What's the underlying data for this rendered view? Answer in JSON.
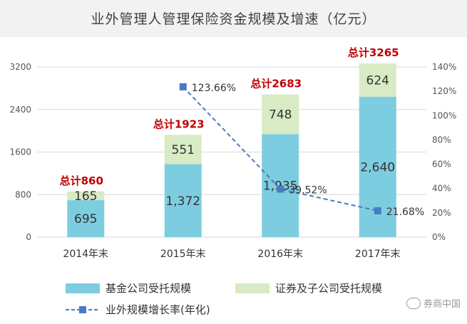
{
  "title": "业外管理人管理保险资金规模及增速（亿元）",
  "colors": {
    "fund": "#7dcde0",
    "securities": "#d8ebc4",
    "line": "#4a7ac0",
    "total": "#c00000"
  },
  "chart_data": {
    "type": "bar",
    "stacked": true,
    "categories": [
      "2014年末",
      "2015年末",
      "2016年末",
      "2017年末"
    ],
    "series": [
      {
        "name": "基金公司受托规模",
        "values": [
          695,
          1372,
          1935,
          2640
        ],
        "labels": [
          "695",
          "1,372",
          "1,935",
          "2,640"
        ]
      },
      {
        "name": "证券及子公司受托规模",
        "values": [
          165,
          551,
          748,
          624
        ],
        "labels": [
          "165",
          "551",
          "748",
          "624"
        ]
      }
    ],
    "totals": [
      860,
      1923,
      2683,
      3265
    ],
    "total_labels": [
      "总计860",
      "总计1923",
      "总计2683",
      "总计3265"
    ],
    "line": {
      "name": "业外规模增长率(年化)",
      "type": "line",
      "axis": "right",
      "values": [
        null,
        123.66,
        39.52,
        21.68
      ],
      "labels": [
        "",
        "123.66%",
        "39.52%",
        "21.68%"
      ]
    },
    "ylim": [
      0,
      3200
    ],
    "yticks": [
      "0",
      "800",
      "1600",
      "2400",
      "3200"
    ],
    "y2lim": [
      0,
      140
    ],
    "y2ticks": [
      "0%",
      "20%",
      "40%",
      "60%",
      "80%",
      "100%",
      "120%",
      "140%"
    ],
    "legend_position": "bottom",
    "grid": true
  },
  "watermark": "券商中国"
}
